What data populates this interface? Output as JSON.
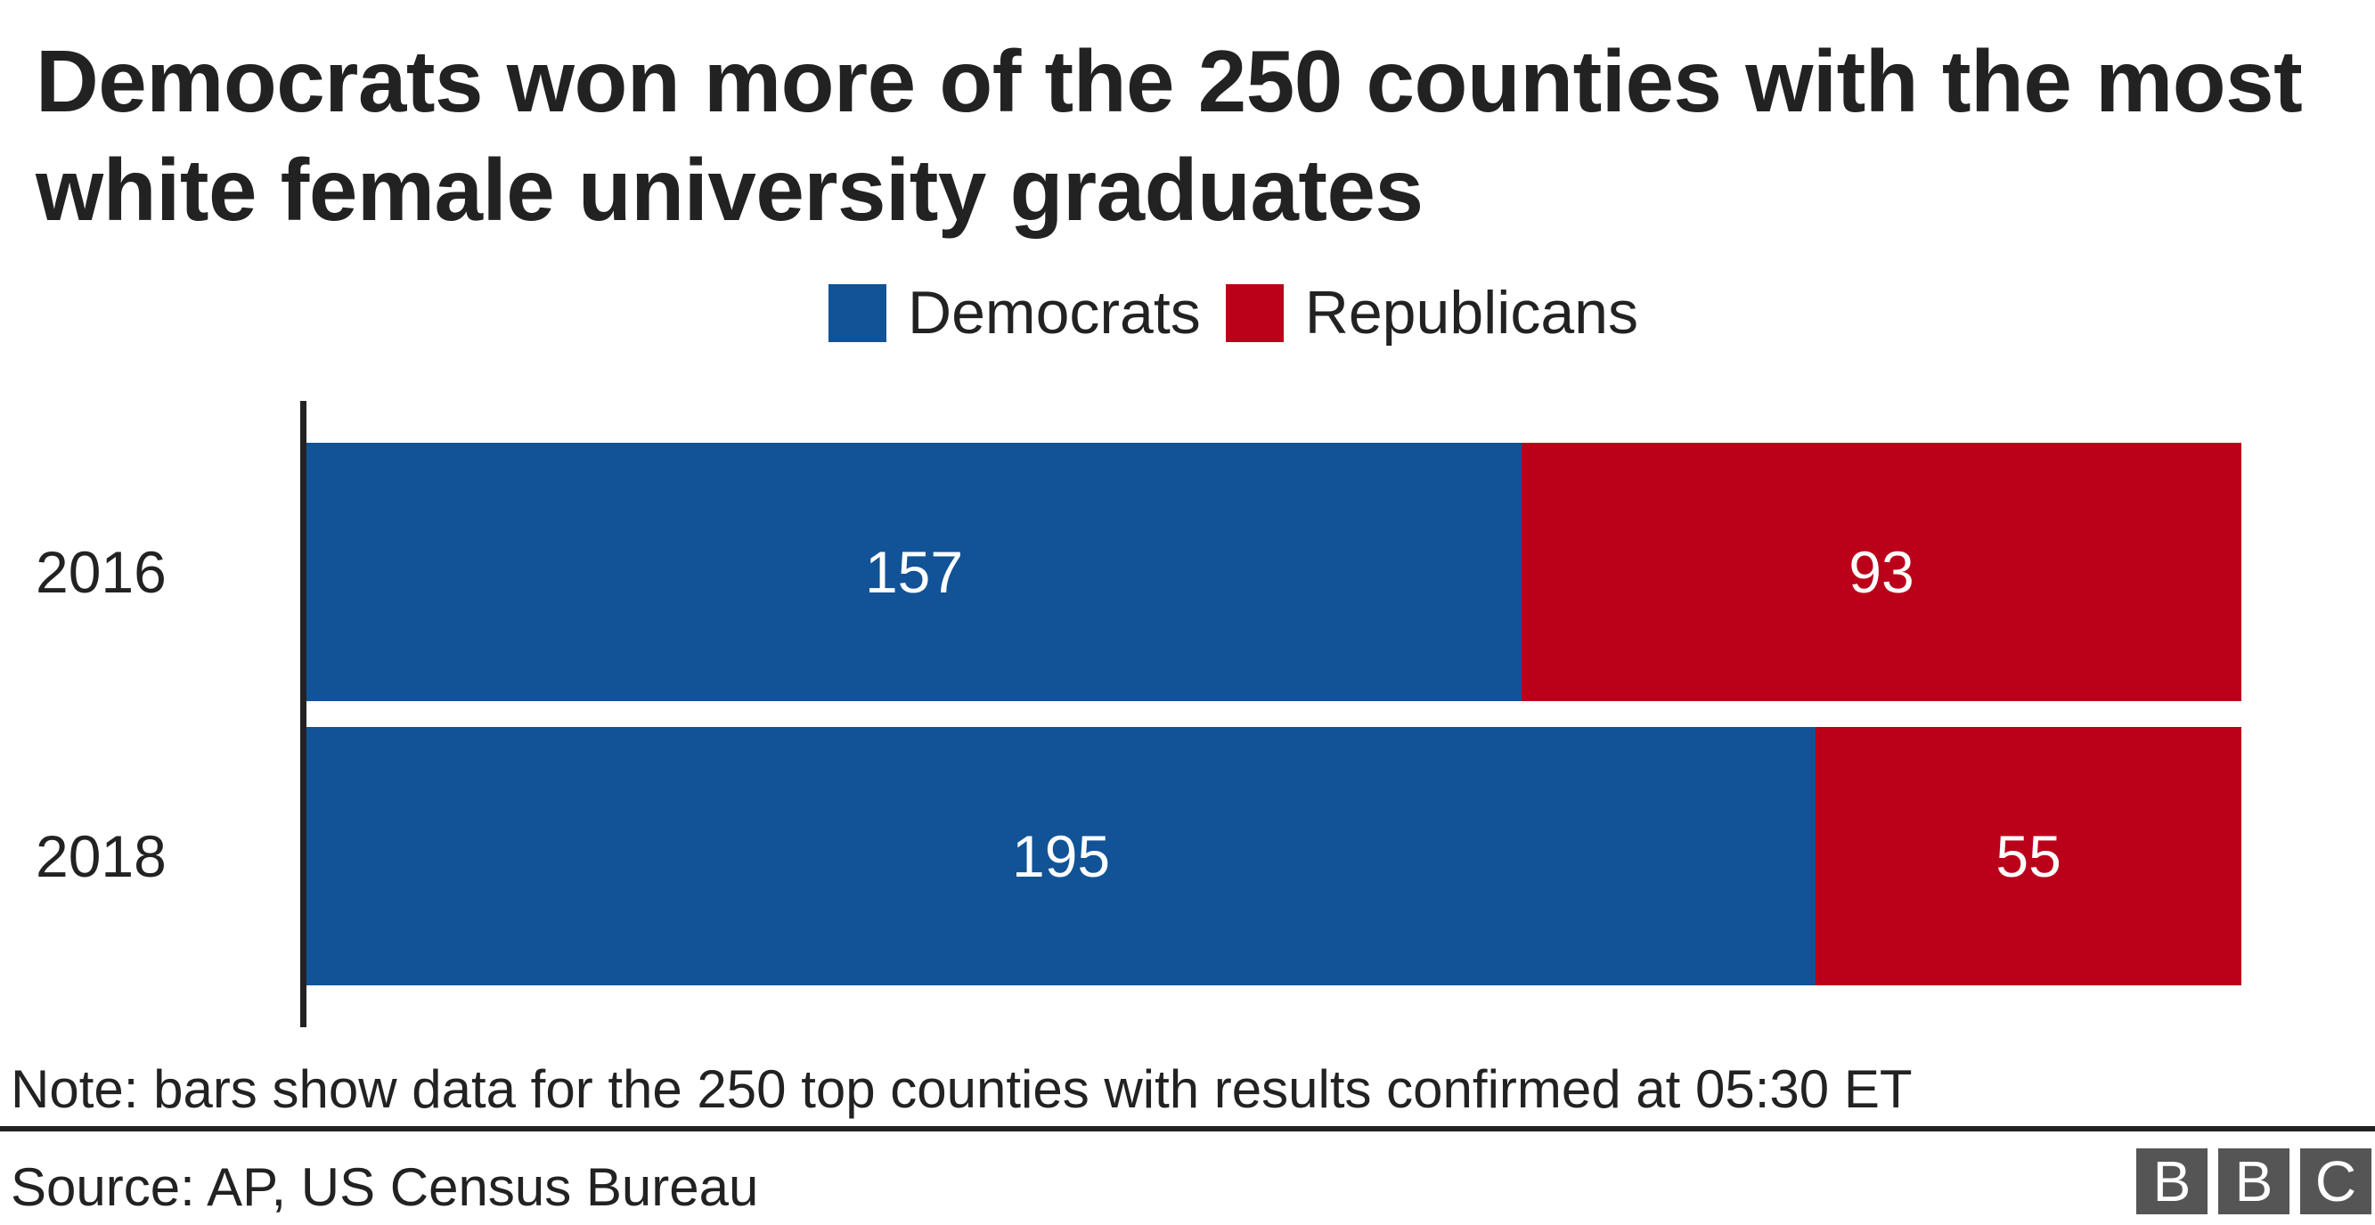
{
  "chart_data": {
    "type": "bar",
    "orientation": "horizontal",
    "stacked": true,
    "title": "Democrats won more of the 250 counties with the most white female university graduates",
    "categories": [
      "2016",
      "2018"
    ],
    "series": [
      {
        "name": "Democrats",
        "values": [
          157,
          195
        ],
        "color": "#115396"
      },
      {
        "name": "Republicans",
        "values": [
          93,
          55
        ],
        "color": "#bb0019"
      }
    ],
    "xlim": [
      0,
      250
    ],
    "grid": false,
    "legend_placement": "top-center"
  },
  "note": "Note: bars show data for the 250 top counties with results confirmed at 05:30 ET",
  "source": "Source: AP, US Census Bureau",
  "logo": "BBC"
}
